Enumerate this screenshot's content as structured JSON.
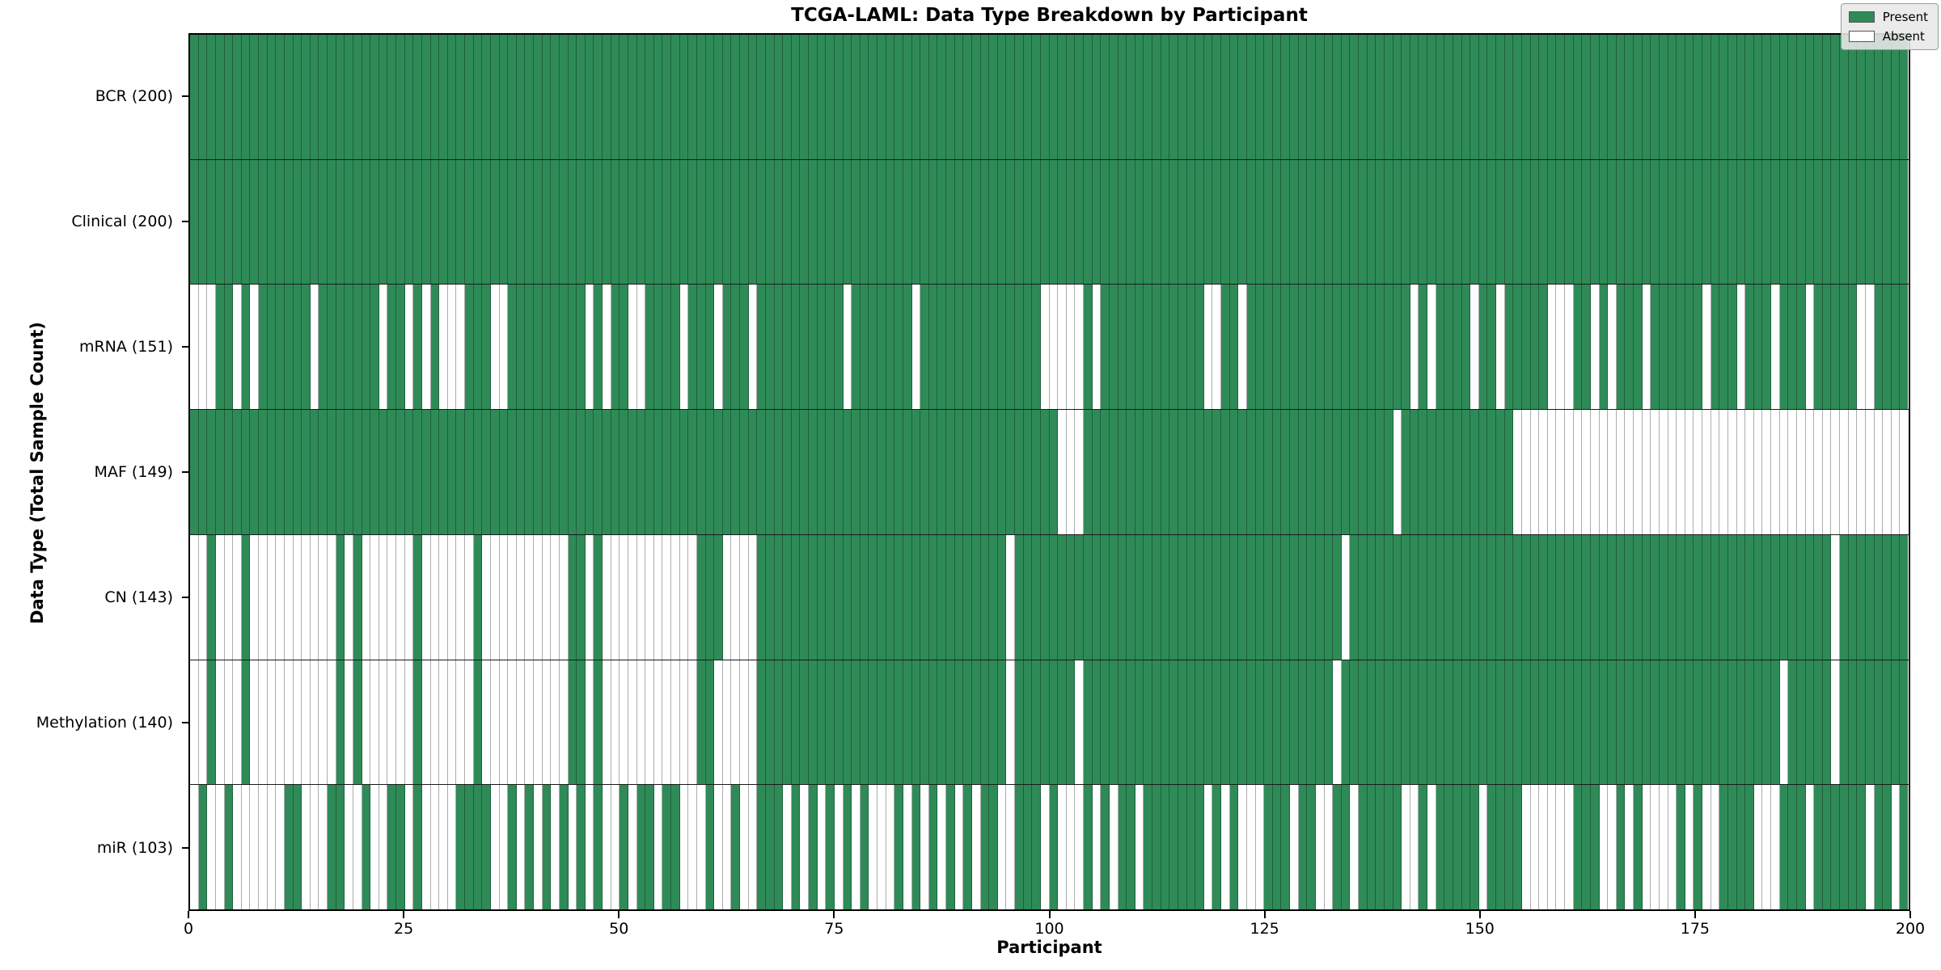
{
  "title": "TCGA-LAML: Data Type Breakdown by Participant",
  "chart_data": {
    "type": "heatmap",
    "title": "TCGA-LAML: Data Type Breakdown by Participant",
    "xlabel": "Participant",
    "ylabel": "Data Type (Total Sample Count)",
    "x_range": [
      0,
      200
    ],
    "n_participants": 200,
    "x_ticks": [
      0,
      25,
      50,
      75,
      100,
      125,
      150,
      175,
      200
    ],
    "grid": false,
    "legend_position": "upper right",
    "legend": [
      {
        "label": "Present",
        "color": "#2e8b57"
      },
      {
        "label": "Absent",
        "color": "#ffffff"
      }
    ],
    "colors": {
      "present": "#2e8b57",
      "absent": "#ffffff",
      "cell_edge": "rgba(0,0,0,0.32)",
      "row_edge": "#1a1a1a"
    },
    "rows": [
      {
        "label": "BCR (200)",
        "name": "BCR",
        "total": 200,
        "presence": "11111111111111111111111111111111111111111111111111111111111111111111111111111111111111111111111111111111111111111111111111111111111111111111111111111111111111111111111111111111111111111111111111111111"
      },
      {
        "label": "Clinical (200)",
        "name": "Clinical",
        "total": 200,
        "presence": "11111111111111111111111111111111111111111111111111111111111111111111111111111111111111111111111111111111111111111111111111111111111111111111111111111111111111111111111111111111111111111111111111111111"
      },
      {
        "label": "mRNA (151)",
        "name": "mRNA",
        "total": 151,
        "presence": "00011010111111011111110110101000111001111111110101100111101110111011111111110111111101111111111111100000101111111111110011011111111111111111110101111011011111000110101110111111011101110111011111001111"
      },
      {
        "label": "MAF (149)",
        "name": "MAF",
        "total": 149,
        "presence": "11111111111111111111111111111111111111111111111111111111111111111111111111111111111111111111111111111000111111111111111111111111111111111111011111111111110000000000000000000000000000000000000000000000"
      },
      {
        "label": "CN (143)",
        "name": "CN",
        "total": 143,
        "presence": "00100010000000000101000000100000010000000000110100000000000111000011111111111111111111111111111011111111111111111111111111111111111111011111111111111111111111111111111111111111111111111111111011111111"
      },
      {
        "label": "Methylation (140)",
        "name": "Methylation",
        "total": 140,
        "presence": "00100010000000000101000000100000010000000000110100000000000110000011111111111111111111111111111011111110111111111111111111111111111110111111111111111111111111111111111111111111111111111011111011111111"
      },
      {
        "label": "miR (103)",
        "name": "miR",
        "total": 103,
        "presence": "01001000000110001100100110100001111001010101010100101101100010010011101010101010001010101010110011101000101011011111110101000111011001101111100101111101111000000111001010000101001111000111011111101101"
      }
    ]
  }
}
